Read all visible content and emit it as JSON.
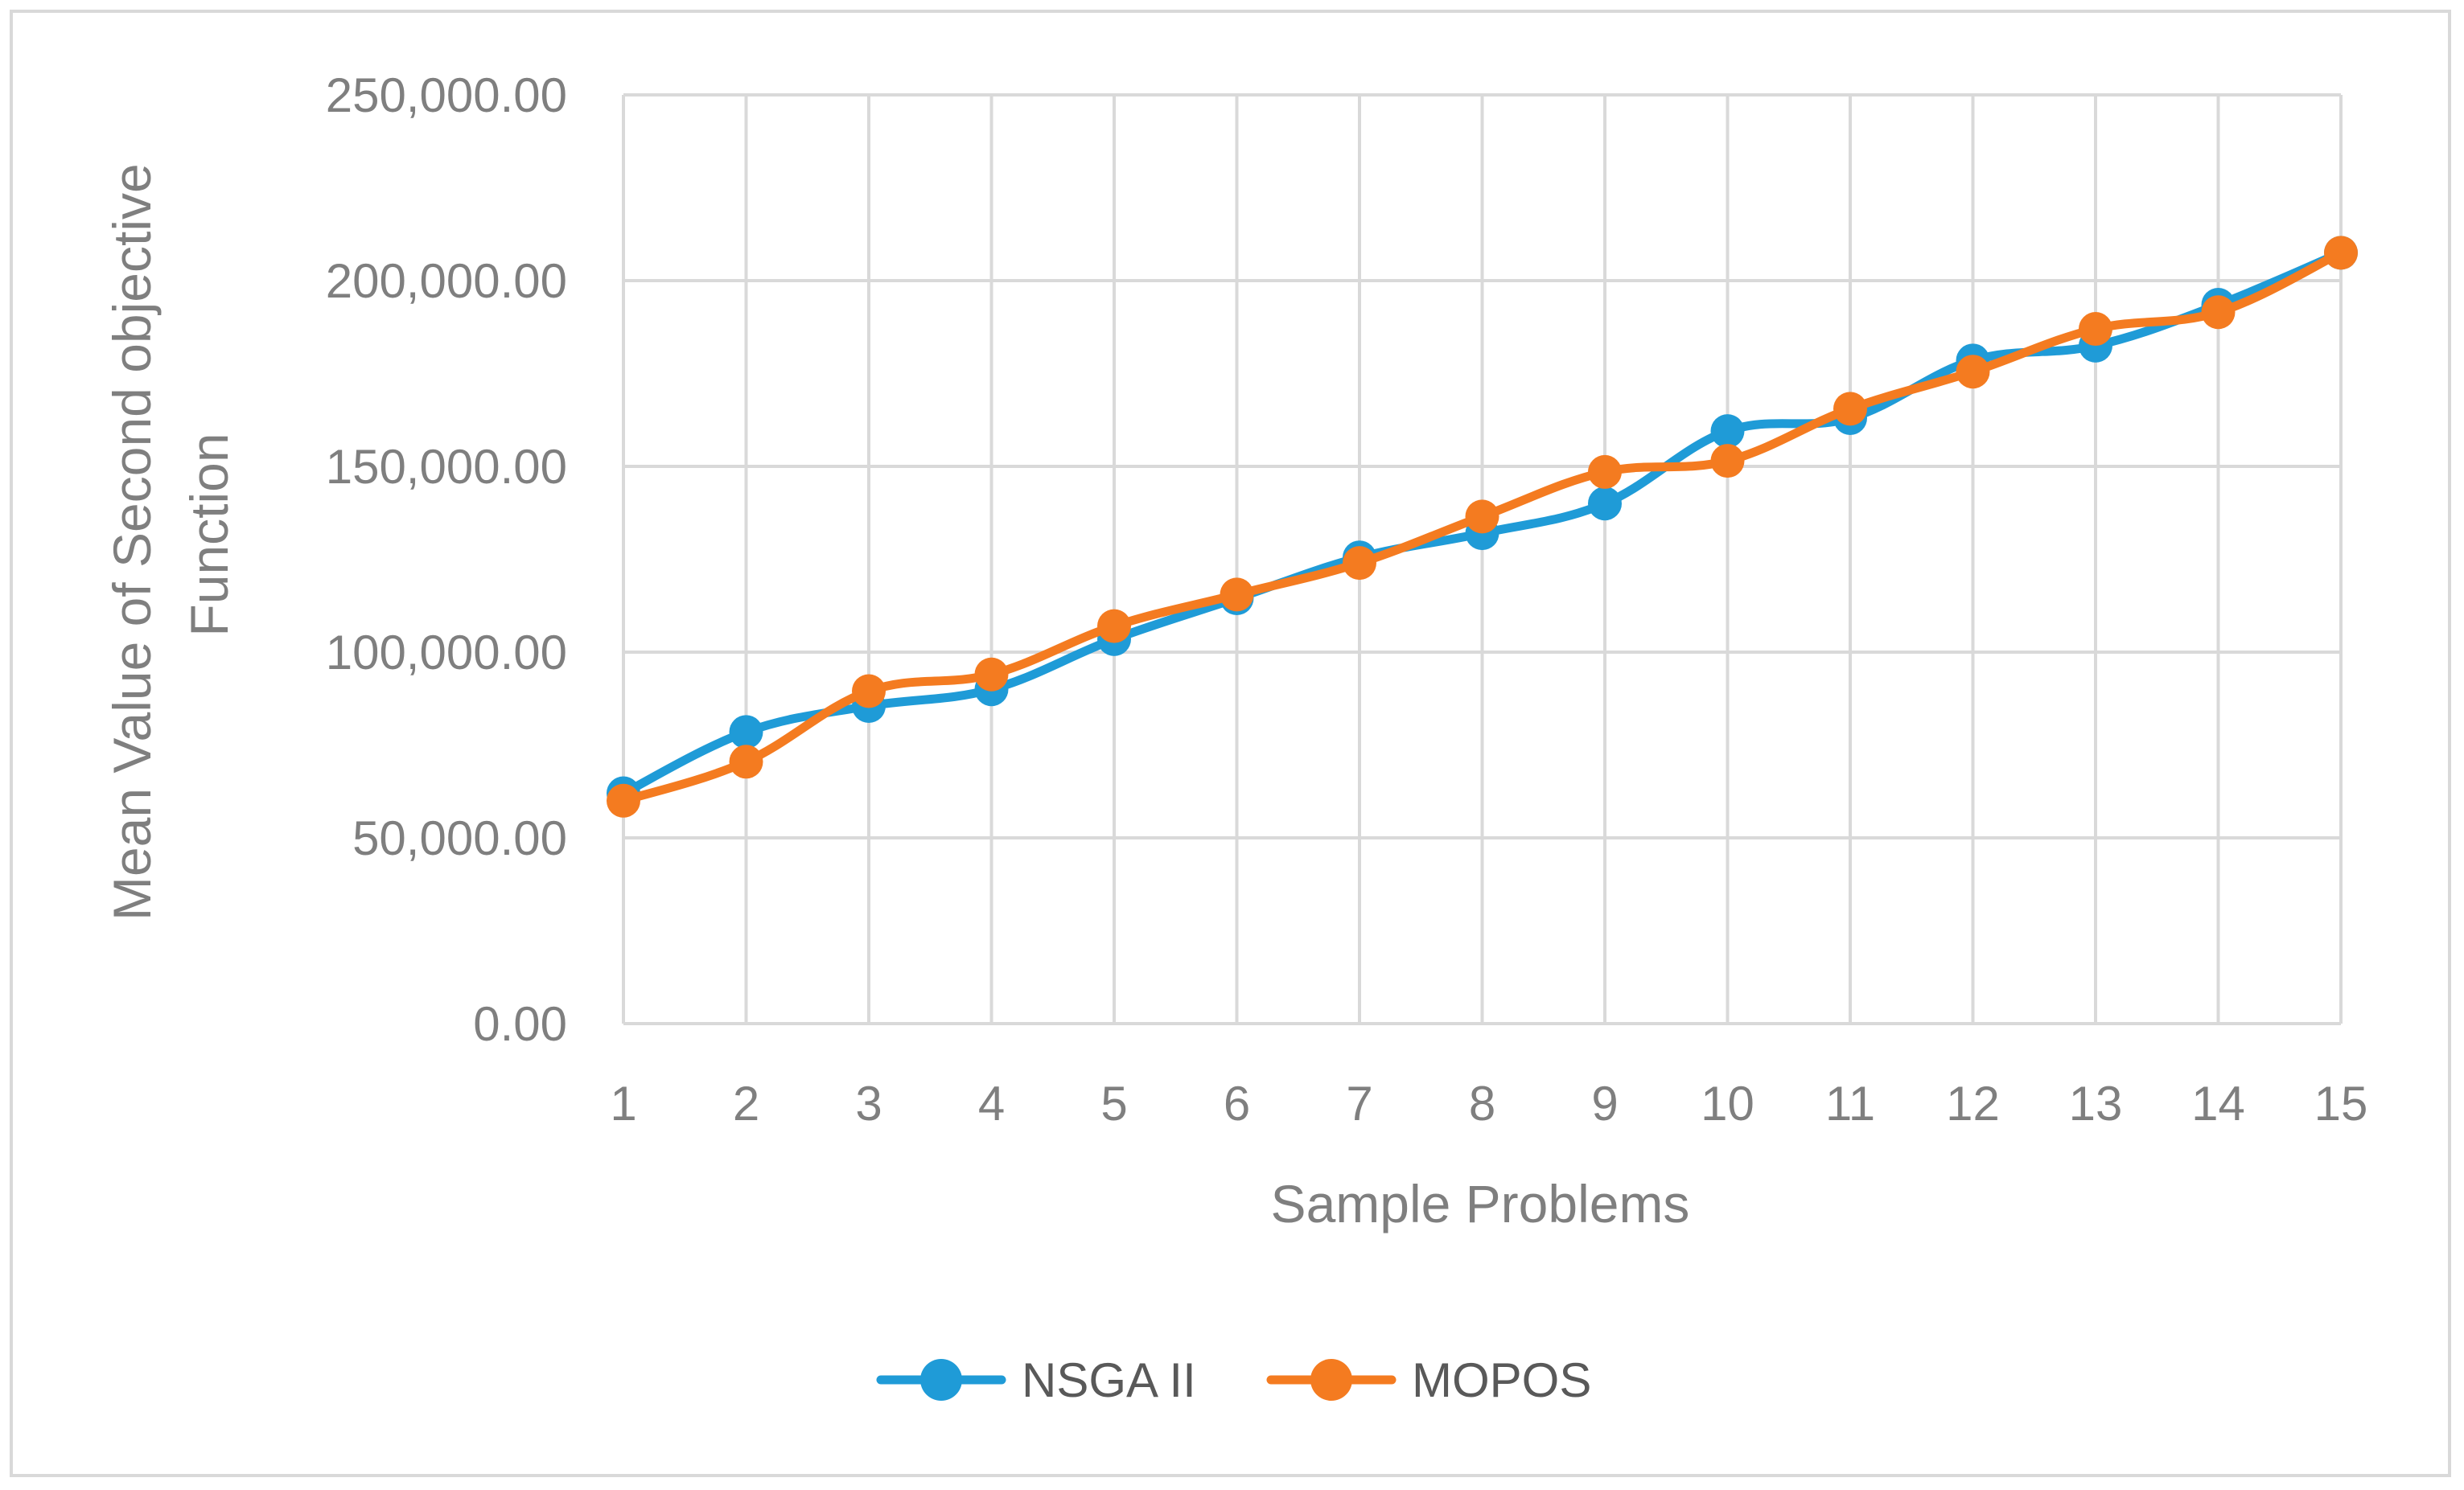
{
  "chart_data": {
    "type": "line",
    "title": "",
    "xlabel": "Sample Problems",
    "ylabel_lines": [
      "Mean Value of Second objective",
      "Function"
    ],
    "categories": [
      "1",
      "2",
      "3",
      "4",
      "5",
      "6",
      "7",
      "8",
      "9",
      "10",
      "11",
      "12",
      "13",
      "14",
      "15"
    ],
    "ylim": [
      0,
      250000
    ],
    "yticks": [
      0,
      50000,
      100000,
      150000,
      200000,
      250000
    ],
    "ytick_labels": [
      "0.00",
      "50,000.00",
      "100,000.00",
      "150,000.00",
      "200,000.00",
      "250,000.00"
    ],
    "grid": true,
    "smooth_lines": true,
    "legend_position": "bottom",
    "series": [
      {
        "name": "NSGA II",
        "color": "#1f9bd7",
        "values": [
          62000,
          78500,
          85500,
          90000,
          103500,
          114500,
          125500,
          132000,
          140000,
          159500,
          163000,
          178500,
          182500,
          193500,
          207500
        ]
      },
      {
        "name": "MOPOS",
        "color": "#f47b20",
        "values": [
          60000,
          70500,
          89500,
          94000,
          107000,
          115500,
          124000,
          136500,
          148500,
          151500,
          165500,
          175500,
          187000,
          191500,
          207500
        ]
      }
    ]
  }
}
